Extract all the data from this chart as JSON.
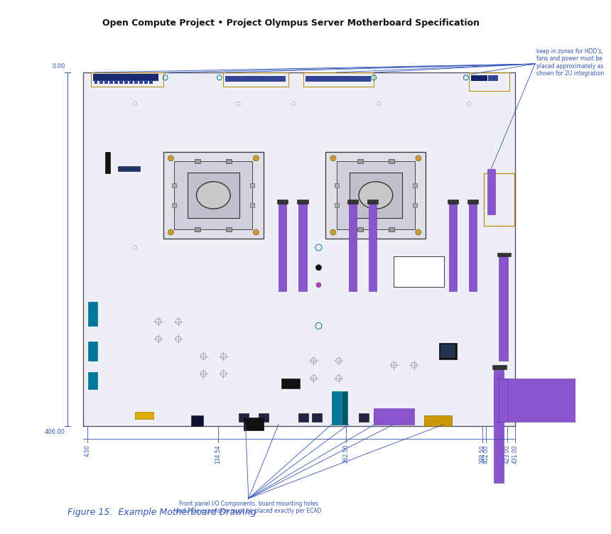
{
  "title": "Open Compute Project • Project Olympus Server Motherboard Specification",
  "caption": "Figure 15.  Example Motherboard Drawing",
  "dim_color": "#3355bb",
  "purple_color": "#8855cc",
  "teal_color": "#007799",
  "note_text": "keep in zones for HDD's,\nfans and power must be\nplaced approximately as\nshown for 2U integration",
  "bottom_note": "Front panel I/O Components, board mounting holes\nand PCIe expansion must be placed exactly per ECAD",
  "dim_labels_bottom": [
    "4.00",
    "134.54",
    "262.50",
    "398.50",
    "402.00",
    "423.00",
    "431.00"
  ],
  "dim_label_left": [
    "0.00",
    "406.00"
  ]
}
